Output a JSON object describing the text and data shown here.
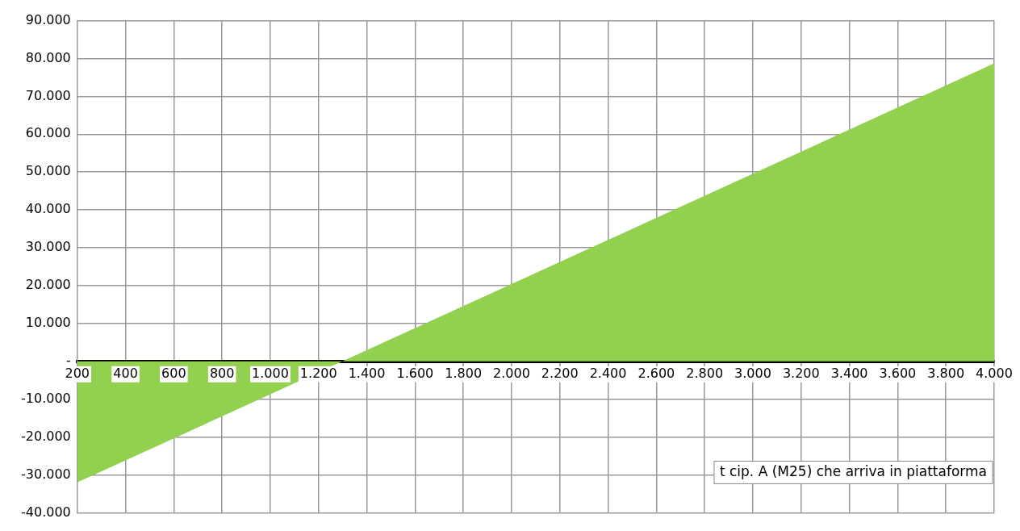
{
  "chart_data": {
    "type": "area",
    "x": [
      200,
      4000
    ],
    "series": [
      {
        "color": "#92d050",
        "values": [
          -32000,
          78700
        ]
      }
    ],
    "xlim": [
      200,
      4000
    ],
    "xticks": [
      {
        "value": 200,
        "label": "200"
      },
      {
        "value": 400,
        "label": "400"
      },
      {
        "value": 600,
        "label": "600"
      },
      {
        "value": 800,
        "label": "800"
      },
      {
        "value": 1000,
        "label": "1.000"
      },
      {
        "value": 1200,
        "label": "1.200"
      },
      {
        "value": 1400,
        "label": "1.400"
      },
      {
        "value": 1600,
        "label": "1.600"
      },
      {
        "value": 1800,
        "label": "1.800"
      },
      {
        "value": 2000,
        "label": "2.000"
      },
      {
        "value": 2200,
        "label": "2.200"
      },
      {
        "value": 2400,
        "label": "2.400"
      },
      {
        "value": 2600,
        "label": "2.600"
      },
      {
        "value": 2800,
        "label": "2.800"
      },
      {
        "value": 3000,
        "label": "3.000"
      },
      {
        "value": 3200,
        "label": "3.200"
      },
      {
        "value": 3400,
        "label": "3.400"
      },
      {
        "value": 3600,
        "label": "3.600"
      },
      {
        "value": 3800,
        "label": "3.800"
      },
      {
        "value": 4000,
        "label": "4.000"
      }
    ],
    "ylim": [
      -40000,
      90000
    ],
    "yticks": [
      {
        "value": -40000,
        "label": "-40.000"
      },
      {
        "value": -30000,
        "label": "-30.000"
      },
      {
        "value": -20000,
        "label": "-20.000"
      },
      {
        "value": -10000,
        "label": "-10.000"
      },
      {
        "value": 0,
        "label": "-"
      },
      {
        "value": 10000,
        "label": "10.000"
      },
      {
        "value": 20000,
        "label": "20.000"
      },
      {
        "value": 30000,
        "label": "30.000"
      },
      {
        "value": 40000,
        "label": "40.000"
      },
      {
        "value": 50000,
        "label": "50.000"
      },
      {
        "value": 60000,
        "label": "60.000"
      },
      {
        "value": 70000,
        "label": "70.000"
      },
      {
        "value": 80000,
        "label": "80.000"
      },
      {
        "value": 90000,
        "label": "90.000"
      }
    ],
    "grid": true,
    "annotations": [
      "t cip. A (M25) che arriva in piattaforma"
    ]
  }
}
